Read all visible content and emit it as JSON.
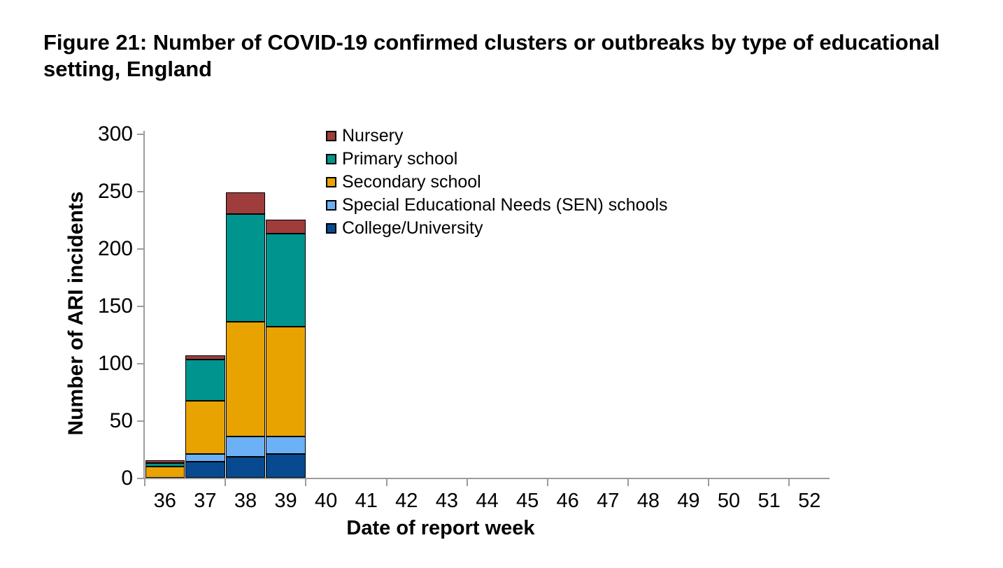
{
  "header": {
    "title_line1": "Figure 21: Number of COVID-19 confirmed clusters or outbreaks by type of educational",
    "title_line2": "setting, England"
  },
  "chart_data": {
    "type": "bar",
    "stacked": true,
    "title": "Figure 21: Number of COVID-19 confirmed clusters or outbreaks by type of educational setting, England",
    "xlabel": "Date of report week",
    "ylabel": "Number of ARI incidents",
    "ylim": [
      0,
      300
    ],
    "ytick_step": 50,
    "xtick_mark_every_n_categories": 2,
    "grid": false,
    "legend_position": "top-inside-left",
    "axis_color": "#9c9c9c",
    "bar_border_color": "#000000",
    "categories": [
      "36",
      "37",
      "38",
      "39",
      "40",
      "41",
      "42",
      "43",
      "44",
      "45",
      "46",
      "47",
      "48",
      "49",
      "50",
      "51",
      "52"
    ],
    "series": [
      {
        "name": "Nursery",
        "color": "#9e3d3b",
        "values": [
          2,
          4,
          19,
          12,
          0,
          0,
          0,
          0,
          0,
          0,
          0,
          0,
          0,
          0,
          0,
          0,
          0
        ]
      },
      {
        "name": "Primary school",
        "color": "#00948e",
        "values": [
          3,
          36,
          94,
          81,
          0,
          0,
          0,
          0,
          0,
          0,
          0,
          0,
          0,
          0,
          0,
          0,
          0
        ]
      },
      {
        "name": "Secondary school",
        "color": "#e8a300",
        "values": [
          10,
          46,
          100,
          96,
          0,
          0,
          0,
          0,
          0,
          0,
          0,
          0,
          0,
          0,
          0,
          0,
          0
        ]
      },
      {
        "name": "Special Educational Needs (SEN) schools",
        "color": "#6cb0f5",
        "values": [
          0,
          7,
          18,
          15,
          0,
          0,
          0,
          0,
          0,
          0,
          0,
          0,
          0,
          0,
          0,
          0,
          0
        ]
      },
      {
        "name": "College/University",
        "color": "#084a90",
        "values": [
          0,
          14,
          18,
          21,
          0,
          0,
          0,
          0,
          0,
          0,
          0,
          0,
          0,
          0,
          0,
          0,
          0
        ]
      }
    ],
    "stack_order_bottom_to_top": [
      "College/University",
      "Special Educational Needs (SEN) schools",
      "Secondary school",
      "Primary school",
      "Nursery"
    ],
    "bar_totals_by_week": {
      "36": 15,
      "37": 107,
      "38": 249,
      "39": 225
    }
  }
}
